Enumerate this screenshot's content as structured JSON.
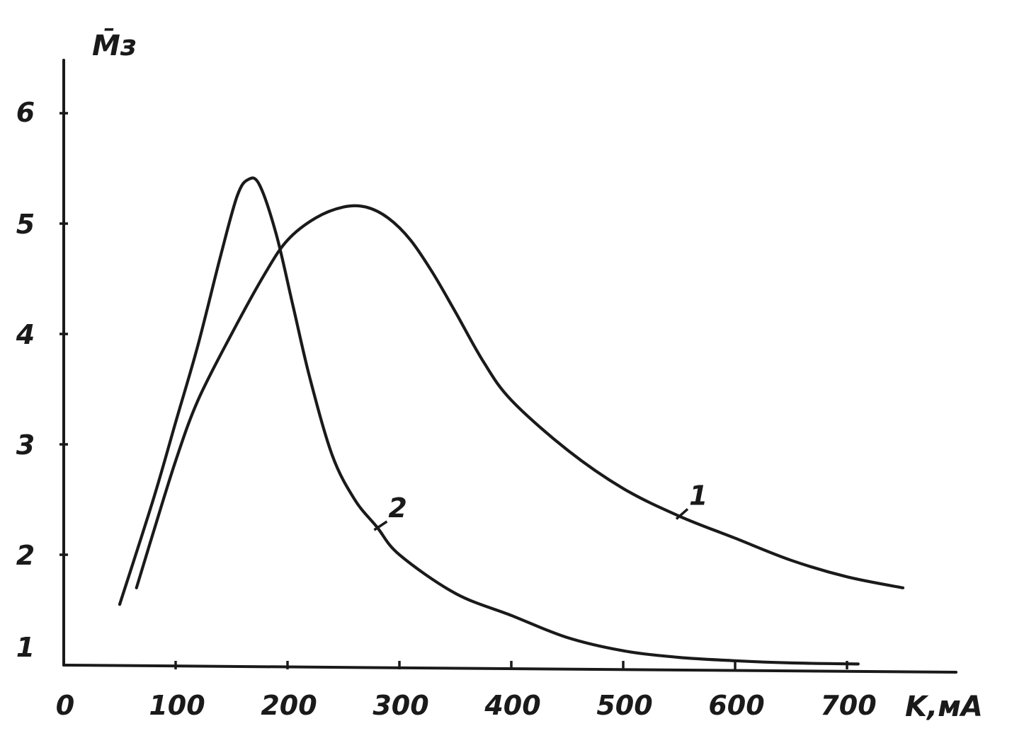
{
  "chart_data": {
    "type": "line",
    "xlabel": "K,мА",
    "ylabel": "M̄з",
    "xlim": [
      0,
      800
    ],
    "ylim": [
      1,
      6.5
    ],
    "x_ticks": [
      0,
      100,
      200,
      300,
      400,
      500,
      600,
      700
    ],
    "x_tick_labels": [
      "0",
      "100",
      "200",
      "300",
      "400",
      "500",
      "600",
      "700"
    ],
    "y_ticks": [
      1,
      2,
      3,
      4,
      5,
      6
    ],
    "y_tick_labels": [
      "1",
      "2",
      "3",
      "4",
      "5",
      "6"
    ],
    "grid": false,
    "series": [
      {
        "name": "1",
        "points": [
          [
            65,
            1.7
          ],
          [
            80,
            2.2
          ],
          [
            100,
            2.85
          ],
          [
            120,
            3.4
          ],
          [
            150,
            4.0
          ],
          [
            180,
            4.55
          ],
          [
            200,
            4.85
          ],
          [
            225,
            5.05
          ],
          [
            250,
            5.15
          ],
          [
            270,
            5.15
          ],
          [
            290,
            5.05
          ],
          [
            310,
            4.85
          ],
          [
            330,
            4.55
          ],
          [
            350,
            4.2
          ],
          [
            375,
            3.75
          ],
          [
            400,
            3.4
          ],
          [
            450,
            2.95
          ],
          [
            500,
            2.6
          ],
          [
            550,
            2.35
          ],
          [
            600,
            2.15
          ],
          [
            650,
            1.95
          ],
          [
            700,
            1.8
          ],
          [
            750,
            1.7
          ]
        ]
      },
      {
        "name": "2",
        "points": [
          [
            50,
            1.55
          ],
          [
            80,
            2.5
          ],
          [
            100,
            3.2
          ],
          [
            120,
            3.9
          ],
          [
            140,
            4.7
          ],
          [
            155,
            5.25
          ],
          [
            165,
            5.4
          ],
          [
            175,
            5.35
          ],
          [
            190,
            4.9
          ],
          [
            205,
            4.25
          ],
          [
            220,
            3.6
          ],
          [
            240,
            2.9
          ],
          [
            260,
            2.5
          ],
          [
            280,
            2.25
          ],
          [
            300,
            2.0
          ],
          [
            350,
            1.65
          ],
          [
            400,
            1.45
          ],
          [
            450,
            1.25
          ],
          [
            500,
            1.13
          ],
          [
            550,
            1.07
          ],
          [
            600,
            1.04
          ],
          [
            650,
            1.02
          ],
          [
            710,
            1.01
          ]
        ]
      }
    ]
  }
}
